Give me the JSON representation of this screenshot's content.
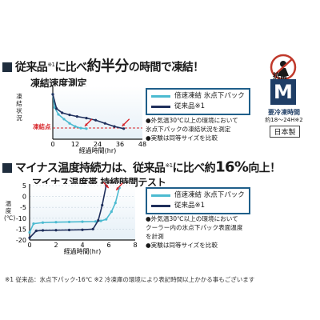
{
  "sec1": {
    "banner_a": "従来品",
    "banner_mark": "※1",
    "banner_b": "に比べ",
    "banner_c": "約半分",
    "banner_d": "の時間で凍結！",
    "chart_title": "凍結速度測定",
    "ylabel": "凍結状況",
    "freeze_point_label": "凍結点",
    "xlabel": "経過時間(hr)",
    "legend": [
      "倍速凍結 氷点下パック",
      "従来品※1"
    ],
    "notes": [
      "●外気温30℃以上の環境において",
      "氷点下パックの凍結状況を測定",
      "●実験は同等サイズを比較"
    ]
  },
  "sec2": {
    "banner_a": "マイナス温度持続力は、従来品",
    "banner_mark": "※1",
    "banner_b": "に比べ約",
    "banner_c": "16%",
    "banner_d": "向上！",
    "chart_title": "マイナス温度帯 持続時間テスト",
    "ylabel": "温度(℃)",
    "xlabel": "経過時間(hr)",
    "legend": [
      "倍速凍結 氷点下パック",
      "従来品※1"
    ],
    "notes": [
      "●外気温30℃以上の環境において",
      "クーラー内の氷点下パック表面温度",
      "を計測",
      "●実験は同等サイズを比較"
    ]
  },
  "side": {
    "antibacterial": "抗菌",
    "size": "M",
    "freeze_time_label": "要冷凍時間",
    "freeze_time_value": "約18〜24H※2",
    "made_in": "日本製"
  },
  "footnote": "※1 従来品：氷点下パック-16℃ ※2 冷凍庫の環境により表記時間以上かかる事もございます",
  "colors": {
    "new_product": "#4bbad0",
    "conventional": "#1f2f5c",
    "arrow": "#d7262b",
    "badge": "#1f3e66"
  },
  "chart_data": [
    {
      "type": "line",
      "title": "凍結速度測定",
      "xlabel": "経過時間(hr)",
      "ylabel": "凍結状況",
      "x_ticks": [
        0,
        12,
        24,
        36,
        48
      ],
      "xlim": [
        0,
        48
      ],
      "ylim": [
        0,
        100
      ],
      "y_ticks_shown": false,
      "freeze_point_value": 20,
      "arrow_targets": [
        "倍速凍結 氷点下パック",
        "従来品※1"
      ],
      "series": [
        {
          "name": "倍速凍結 氷点下パック",
          "x": [
            0,
            1,
            3,
            6,
            9,
            12,
            15,
            18
          ],
          "y": [
            85,
            60,
            47,
            38,
            30,
            24,
            21,
            20
          ]
        },
        {
          "name": "従来品※1",
          "x": [
            0,
            2,
            5,
            9,
            13,
            18,
            23,
            28,
            33,
            38
          ],
          "y": [
            85,
            58,
            50,
            46,
            43,
            40,
            36,
            30,
            24,
            20
          ]
        }
      ]
    },
    {
      "type": "line",
      "title": "マイナス温度帯 持続時間テスト",
      "xlabel": "経過時間(hr)",
      "ylabel": "温度(℃)",
      "x_ticks": [
        0,
        2,
        4,
        6,
        8
      ],
      "y_ticks": [
        5,
        0,
        -5,
        -10,
        -15,
        -20
      ],
      "xlim": [
        0,
        8
      ],
      "ylim": [
        -20,
        5
      ],
      "grid": true,
      "arrow_targets": [
        "従来品※1",
        "倍速凍結 氷点下パック"
      ],
      "series": [
        {
          "name": "倍速凍結 氷点下パック",
          "x": [
            0,
            0.3,
            1,
            2,
            3,
            4,
            5,
            5.4,
            5.8,
            6.2,
            6.5,
            6.8
          ],
          "y": [
            -16.5,
            -12.5,
            -12,
            -11.8,
            -11.7,
            -11.6,
            -11.5,
            -11.2,
            -10.5,
            -7,
            -3,
            4
          ]
        },
        {
          "name": "従来品※1",
          "x": [
            0,
            0.5,
            1,
            2,
            3,
            4,
            4.8,
            5.2,
            5.5,
            5.8
          ],
          "y": [
            -19,
            -15.8,
            -15.6,
            -15.5,
            -15.4,
            -15.3,
            -15,
            -11,
            -4,
            5
          ]
        }
      ]
    }
  ]
}
